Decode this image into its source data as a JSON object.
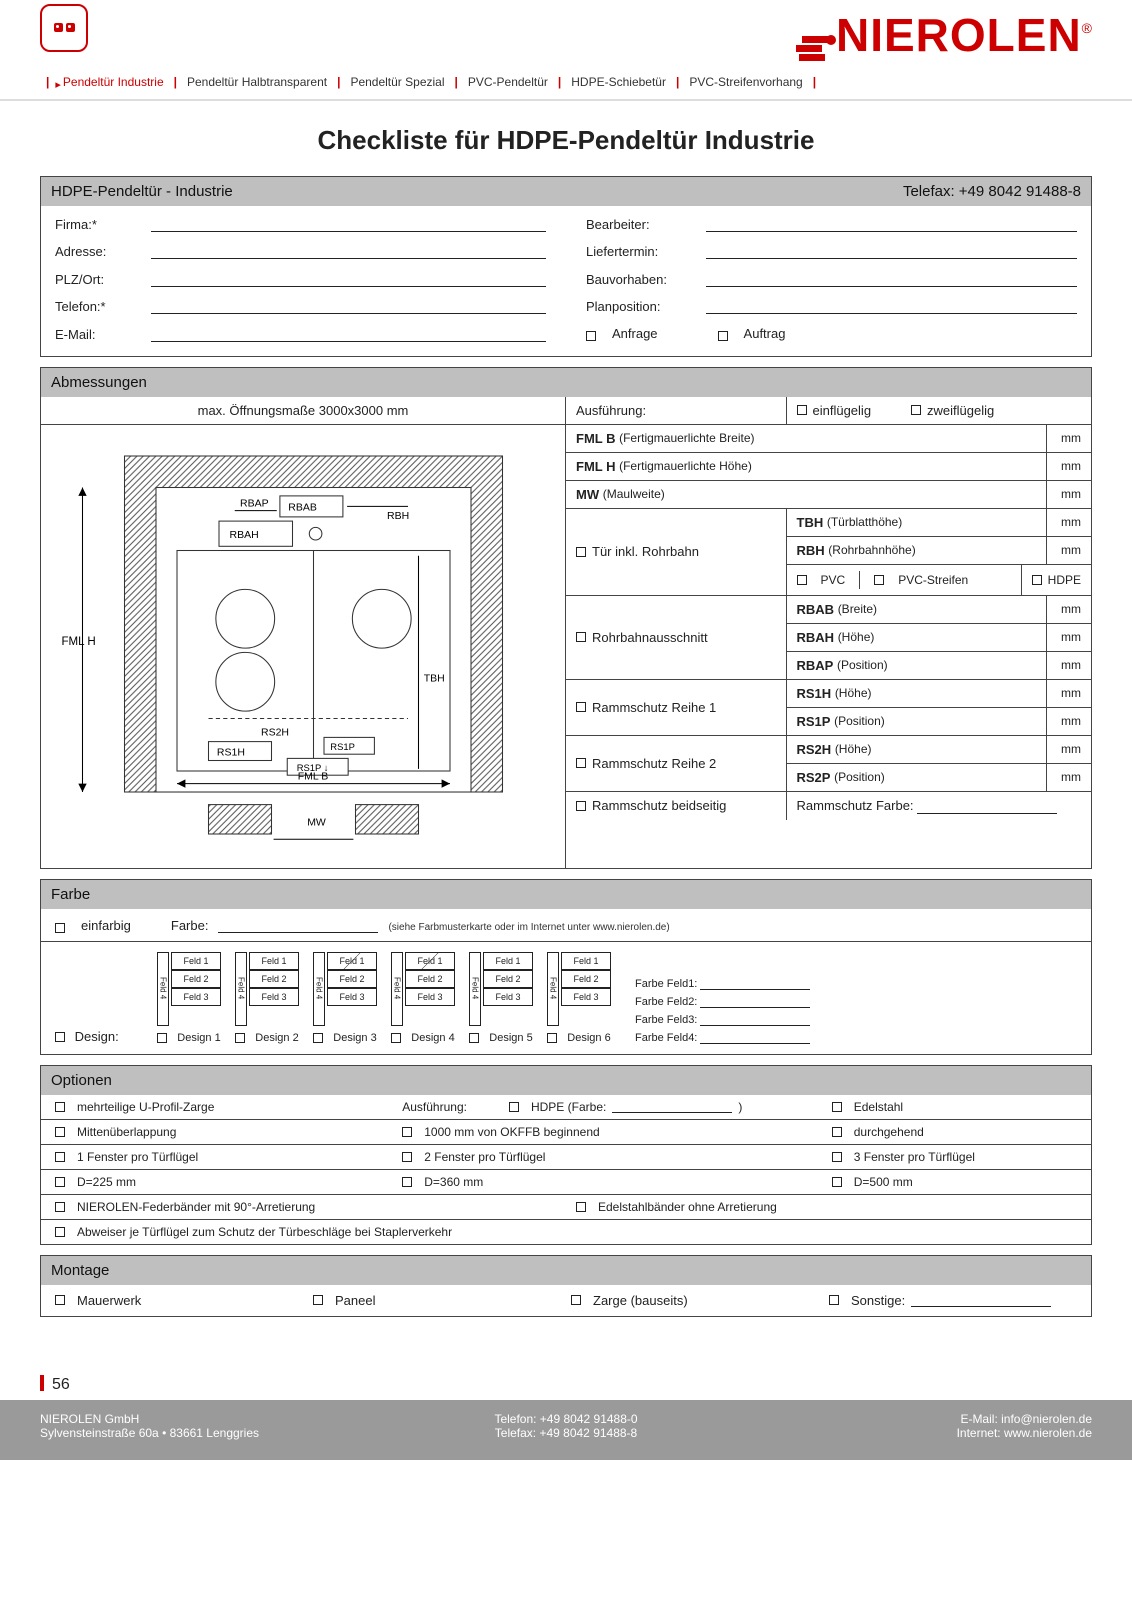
{
  "brand": {
    "name": "NIEROLEN",
    "reg": "®"
  },
  "tabs": {
    "active": "Pendeltür Industrie",
    "items": [
      "Pendeltür Industrie",
      "Pendeltür Halbtransparent",
      "Pendeltür Spezial",
      "PVC-Pendeltür",
      "HDPE-Schiebetür",
      "PVC-Streifenvorhang"
    ]
  },
  "title": "Checkliste für HDPE-Pendeltür Industrie",
  "header_panel": {
    "left": "HDPE-Pendeltür - Industrie",
    "right": "Telefax: +49 8042 91488-8"
  },
  "info": {
    "left_labels": [
      "Firma:*",
      "Adresse:",
      "PLZ/Ort:",
      "Telefon:*",
      "E-Mail:"
    ],
    "right_labels": [
      "Bearbeiter:",
      "Liefertermin:",
      "Bauvorhaben:",
      "Planposition:"
    ],
    "anfrage": "Anfrage",
    "auftrag": "Auftrag"
  },
  "abm": {
    "heading": "Abmessungen",
    "left_caption": "max. Öffnungsmaße 3000x3000 mm",
    "ausfuehrung_label": "Ausführung:",
    "einfluegelig": "einflügelig",
    "zweifluegelig": "zweiflügelig",
    "fml_b": "FML B",
    "fml_b_desc": "(Fertigmauerlichte Breite)",
    "fml_h": "FML H",
    "fml_h_desc": "(Fertigmauerlichte Höhe)",
    "mw": "MW",
    "mw_desc": "(Maulweite)",
    "tuer_inkl": "Tür inkl. Rohrbahn",
    "tbh": "TBH",
    "tbh_desc": "(Türblatthöhe)",
    "rbh": "RBH",
    "rbh_desc": "(Rohrbahnhöhe)",
    "pvc": "PVC",
    "pvc_streifen": "PVC-Streifen",
    "hdpe": "HDPE",
    "rohrbahn": "Rohrbahnausschnitt",
    "rbab": "RBAB",
    "rbab_desc": "(Breite)",
    "rbah": "RBAH",
    "rbah_desc": "(Höhe)",
    "rbap": "RBAP",
    "rbap_desc": "(Position)",
    "ramm1": "Rammschutz Reihe 1",
    "rs1h": "RS1H",
    "rs1h_desc": "(Höhe)",
    "rs1p": "RS1P",
    "rs1p_desc": "(Position)",
    "ramm2": "Rammschutz Reihe 2",
    "rs2h": "RS2H",
    "rs2h_desc": "(Höhe)",
    "rs2p": "RS2P",
    "rs2p_desc": "(Position)",
    "ramm_beid": "Rammschutz beidseitig",
    "ramm_farbe": "Rammschutz Farbe:",
    "mm": "mm",
    "diagram_labels": {
      "fmlh": "FML H",
      "rbap": "RBAP",
      "rbab": "RBAB",
      "rbh": "RBH",
      "rbah": "RBAH",
      "tbh": "TBH",
      "rs2h": "RS2H",
      "rs1h": "RS1H",
      "rs1p_top": "RS1P",
      "rs1p_bot": "RS1P",
      "fmlb": "FML B",
      "mw": "MW"
    }
  },
  "farbe": {
    "heading": "Farbe",
    "einfarbig": "einfarbig",
    "farbe_label": "Farbe:",
    "hint": "(siehe Farbmusterkarte oder im Internet unter www.nierolen.de)",
    "design_label": "Design:",
    "feld": "Feld",
    "designs": [
      "Design 1",
      "Design 2",
      "Design 3",
      "Design 4",
      "Design 5",
      "Design 6"
    ],
    "farbe_feld": [
      "Farbe Feld1:",
      "Farbe Feld2:",
      "Farbe Feld3:",
      "Farbe Feld4:"
    ]
  },
  "optionen": {
    "heading": "Optionen",
    "row1": {
      "a": "mehrteilige U-Profil-Zarge",
      "b_label": "Ausführung:",
      "c": "HDPE (Farbe:",
      "d": "Edelstahl"
    },
    "row2": {
      "a": "Mittenüberlappung",
      "b": "1000 mm von OKFFB beginnend",
      "c": "durchgehend"
    },
    "row3": {
      "a": "1 Fenster pro Türflügel",
      "b": "2 Fenster pro Türflügel",
      "c": "3 Fenster pro Türflügel"
    },
    "row4": {
      "a": "D=225 mm",
      "b": "D=360 mm",
      "c": "D=500 mm"
    },
    "row5": {
      "a": "NIEROLEN-Federbänder mit 90°-Arretierung",
      "b": "Edelstahlbänder ohne Arretierung"
    },
    "row6": {
      "a": "Abweiser je Türflügel zum Schutz der Türbeschläge bei Staplerverkehr"
    }
  },
  "montage": {
    "heading": "Montage",
    "a": "Mauerwerk",
    "b": "Paneel",
    "c": "Zarge (bauseits)",
    "d": "Sonstige:"
  },
  "page_number": "56",
  "footer": {
    "company": "NIEROLEN GmbH",
    "addr": "Sylvensteinstraße 60a • 83661 Lenggries",
    "tel": "Telefon: +49 8042 91488-0",
    "fax": "Telefax: +49 8042 91488-8",
    "email": "E-Mail:   info@nierolen.de",
    "web": "Internet: www.nierolen.de"
  },
  "colors": {
    "accent": "#c00",
    "panel_hd": "#bfbfbf",
    "footer_bg": "#9a9a9a"
  }
}
